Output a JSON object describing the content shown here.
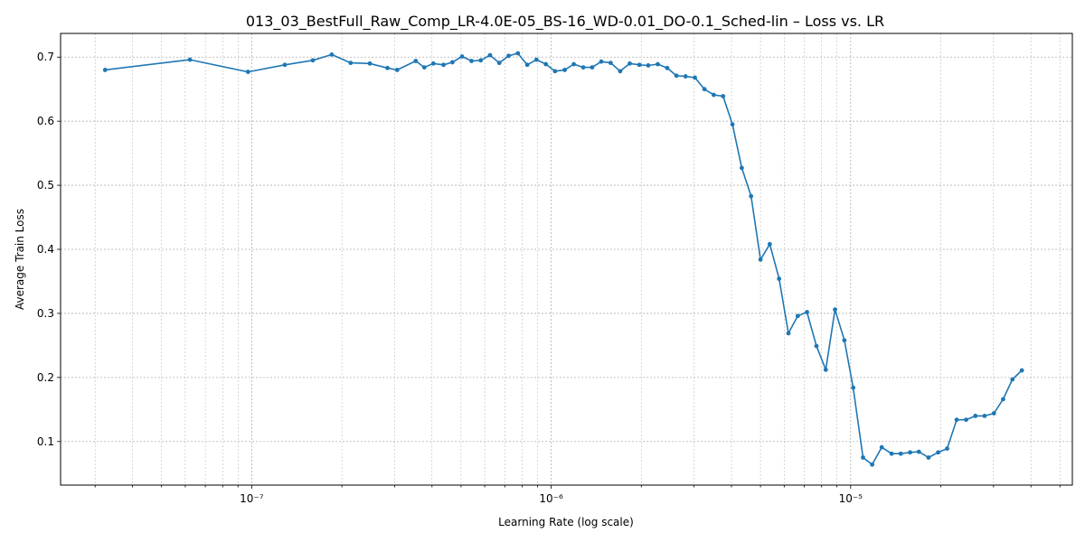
{
  "chart_data": {
    "type": "line",
    "title": "013_03_BestFull_Raw_Comp_LR-4.0E-05_BS-16_WD-0.01_DO-0.1_Sched-lin – Loss vs. LR",
    "xlabel": "Learning Rate (log scale)",
    "ylabel": "Average Train Loss",
    "xscale": "log",
    "xlim": [
      2.3e-08,
      5.5e-05
    ],
    "ylim": [
      0.032,
      0.737
    ],
    "grid": true,
    "x_major_ticks": [
      1e-07,
      1e-06,
      1e-05
    ],
    "x_major_tick_labels": [
      "10⁻⁷",
      "10⁻⁶",
      "10⁻⁵"
    ],
    "y_ticks": [
      0.1,
      0.2,
      0.3,
      0.4,
      0.5,
      0.6,
      0.7
    ],
    "y_tick_labels": [
      "0.1",
      "0.2",
      "0.3",
      "0.4",
      "0.5",
      "0.6",
      "0.7"
    ],
    "color": "#1f77b4",
    "series": [
      {
        "x": [
          3.24e-08,
          6.22e-08,
          9.72e-08,
          1.29e-07,
          1.6e-07,
          1.85e-07,
          2.14e-07,
          2.48e-07,
          2.84e-07,
          3.06e-07,
          3.53e-07,
          3.77e-07,
          4.04e-07,
          4.37e-07,
          4.68e-07,
          5.04e-07,
          5.42e-07,
          5.82e-07,
          6.25e-07,
          6.71e-07,
          7.21e-07,
          7.74e-07,
          8.32e-07,
          8.93e-07,
          9.6e-07,
          1.03e-06,
          1.11e-06,
          1.19e-06,
          1.28e-06,
          1.37e-06,
          1.47e-06,
          1.58e-06,
          1.7e-06,
          1.83e-06,
          1.97e-06,
          2.11e-06,
          2.27e-06,
          2.44e-06,
          2.62e-06,
          2.81e-06,
          3.02e-06,
          3.25e-06,
          3.49e-06,
          3.75e-06,
          4.03e-06,
          4.33e-06,
          4.65e-06,
          5e-06,
          5.37e-06,
          5.77e-06,
          6.2e-06,
          6.66e-06,
          7.15e-06,
          7.69e-06,
          8.26e-06,
          8.87e-06,
          9.53e-06,
          1.02e-05,
          1.1e-05,
          1.18e-05,
          1.27e-05,
          1.37e-05,
          1.47e-05,
          1.58e-05,
          1.69e-05,
          1.82e-05,
          1.96e-05,
          2.1e-05,
          2.26e-05,
          2.43e-05,
          2.61e-05,
          2.8e-05,
          3.01e-05,
          3.23e-05,
          3.47e-05,
          3.73e-05
        ],
        "y": [
          0.68,
          0.696,
          0.677,
          0.688,
          0.695,
          0.704,
          0.691,
          0.69,
          0.683,
          0.68,
          0.694,
          0.684,
          0.69,
          0.688,
          0.692,
          0.701,
          0.694,
          0.695,
          0.703,
          0.691,
          0.702,
          0.706,
          0.688,
          0.696,
          0.689,
          0.678,
          0.68,
          0.689,
          0.684,
          0.684,
          0.693,
          0.691,
          0.678,
          0.69,
          0.688,
          0.687,
          0.689,
          0.683,
          0.671,
          0.67,
          0.668,
          0.65,
          0.641,
          0.639,
          0.595,
          0.527,
          0.483,
          0.384,
          0.408,
          0.354,
          0.269,
          0.296,
          0.302,
          0.249,
          0.212,
          0.306,
          0.258,
          0.184,
          0.075,
          0.064,
          0.091,
          0.081,
          0.081,
          0.083,
          0.084,
          0.075,
          0.083,
          0.089,
          0.134,
          0.134,
          0.14,
          0.14,
          0.144,
          0.166,
          0.197,
          0.211
        ]
      }
    ]
  }
}
